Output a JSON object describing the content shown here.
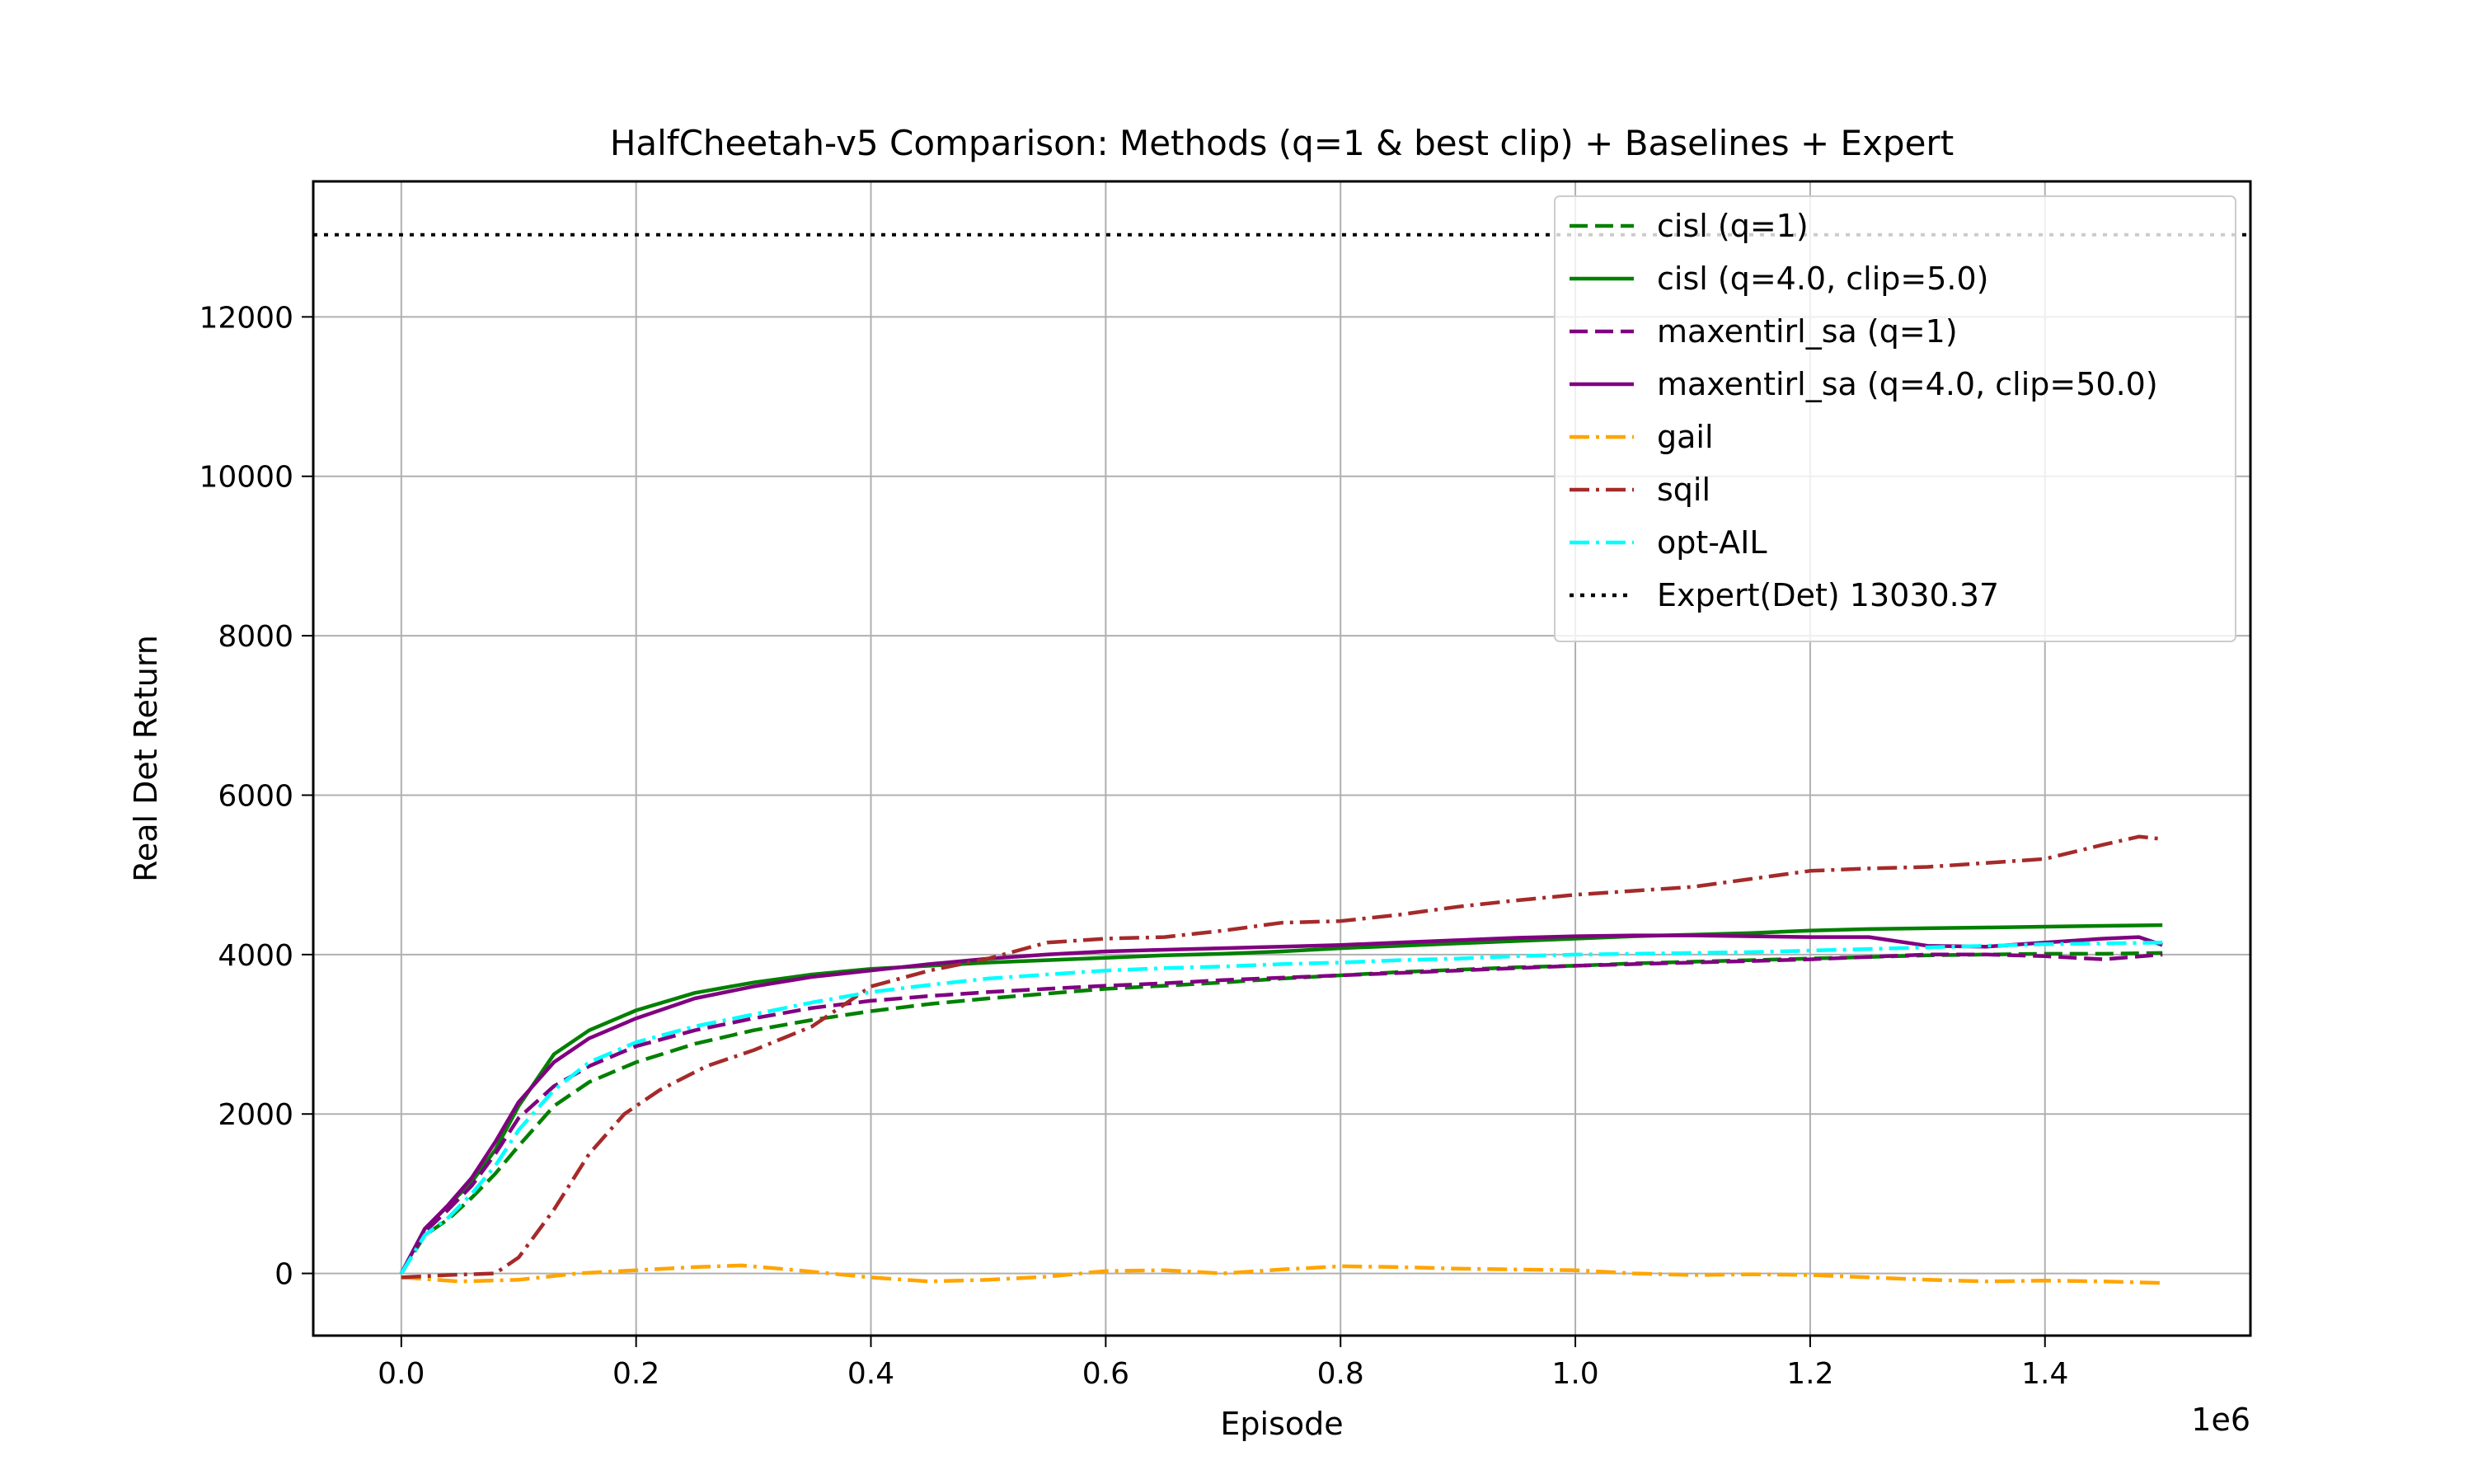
{
  "chart_data": {
    "type": "line",
    "title": "HalfCheetah-v5 Comparison: Methods (q=1 & best clip) + Baselines + Expert",
    "xlabel": "Episode",
    "ylabel": "Real Det Return",
    "x_scale_label": "1e6",
    "x_scale_factor": 1000000,
    "xlim": [
      -75000,
      1575000
    ],
    "ylim": [
      -780,
      13700
    ],
    "x_ticks": [
      0,
      200000,
      400000,
      600000,
      800000,
      1000000,
      1200000,
      1400000
    ],
    "x_tick_labels": [
      "0.0",
      "0.2",
      "0.4",
      "0.6",
      "0.8",
      "1.0",
      "1.2",
      "1.4"
    ],
    "y_ticks": [
      0,
      2000,
      4000,
      6000,
      8000,
      10000,
      12000
    ],
    "y_tick_labels": [
      "0",
      "2000",
      "4000",
      "6000",
      "8000",
      "10000",
      "12000"
    ],
    "grid": true,
    "legend_position": "top-right",
    "series": [
      {
        "name": "cisl (q=1)",
        "color": "#008000",
        "style": "dashed",
        "x": [
          0,
          20000,
          40000,
          60000,
          80000,
          100000,
          130000,
          160000,
          200000,
          250000,
          300000,
          350000,
          400000,
          450000,
          500000,
          550000,
          600000,
          650000,
          700000,
          750000,
          800000,
          850000,
          900000,
          950000,
          1000000,
          1050000,
          1100000,
          1150000,
          1200000,
          1250000,
          1300000,
          1350000,
          1400000,
          1450000,
          1500000
        ],
        "y": [
          0,
          480,
          680,
          950,
          1250,
          1600,
          2100,
          2400,
          2650,
          2880,
          3050,
          3180,
          3290,
          3380,
          3450,
          3510,
          3570,
          3610,
          3650,
          3700,
          3740,
          3780,
          3810,
          3840,
          3860,
          3890,
          3910,
          3930,
          3950,
          3970,
          3990,
          4000,
          4010,
          4010,
          4020
        ]
      },
      {
        "name": "cisl (q=4.0, clip=5.0)",
        "color": "#008000",
        "style": "solid",
        "x": [
          0,
          20000,
          40000,
          60000,
          80000,
          100000,
          130000,
          160000,
          200000,
          250000,
          300000,
          350000,
          400000,
          450000,
          500000,
          550000,
          600000,
          650000,
          700000,
          750000,
          800000,
          850000,
          900000,
          950000,
          1000000,
          1050000,
          1100000,
          1150000,
          1200000,
          1250000,
          1300000,
          1350000,
          1400000,
          1450000,
          1500000
        ],
        "y": [
          0,
          560,
          850,
          1150,
          1550,
          2100,
          2750,
          3050,
          3300,
          3520,
          3650,
          3750,
          3820,
          3860,
          3900,
          3930,
          3960,
          3990,
          4010,
          4040,
          4080,
          4110,
          4140,
          4170,
          4200,
          4230,
          4250,
          4270,
          4300,
          4320,
          4330,
          4340,
          4350,
          4360,
          4370
        ]
      },
      {
        "name": "maxentirl_sa (q=1)",
        "color": "#800080",
        "style": "dashed",
        "x": [
          0,
          20000,
          40000,
          60000,
          80000,
          100000,
          130000,
          160000,
          200000,
          250000,
          300000,
          350000,
          400000,
          450000,
          500000,
          550000,
          600000,
          650000,
          700000,
          750000,
          800000,
          850000,
          900000,
          950000,
          1000000,
          1050000,
          1100000,
          1150000,
          1200000,
          1250000,
          1300000,
          1350000,
          1400000,
          1450000,
          1500000
        ],
        "y": [
          0,
          520,
          800,
          1100,
          1500,
          1950,
          2350,
          2600,
          2850,
          3050,
          3200,
          3330,
          3420,
          3480,
          3530,
          3570,
          3610,
          3640,
          3680,
          3710,
          3740,
          3770,
          3800,
          3830,
          3860,
          3880,
          3900,
          3920,
          3940,
          3970,
          4000,
          4000,
          3980,
          3940,
          4000
        ]
      },
      {
        "name": "maxentirl_sa (q=4.0, clip=50.0)",
        "color": "#800080",
        "style": "solid",
        "x": [
          0,
          20000,
          40000,
          60000,
          80000,
          100000,
          130000,
          160000,
          200000,
          250000,
          300000,
          350000,
          400000,
          450000,
          500000,
          550000,
          600000,
          650000,
          700000,
          750000,
          800000,
          850000,
          900000,
          950000,
          1000000,
          1050000,
          1100000,
          1150000,
          1200000,
          1250000,
          1300000,
          1350000,
          1400000,
          1450000,
          1480000,
          1500000
        ],
        "y": [
          0,
          560,
          860,
          1200,
          1650,
          2150,
          2650,
          2950,
          3200,
          3450,
          3600,
          3720,
          3800,
          3880,
          3950,
          4000,
          4040,
          4060,
          4080,
          4100,
          4120,
          4150,
          4180,
          4210,
          4230,
          4240,
          4240,
          4230,
          4220,
          4220,
          4110,
          4100,
          4150,
          4200,
          4220,
          4120
        ]
      },
      {
        "name": "gail",
        "color": "#ffa500",
        "style": "dashdot",
        "x": [
          0,
          50000,
          100000,
          150000,
          200000,
          250000,
          290000,
          330000,
          400000,
          450000,
          500000,
          550000,
          600000,
          650000,
          700000,
          750000,
          800000,
          850000,
          900000,
          950000,
          1000000,
          1050000,
          1100000,
          1150000,
          1200000,
          1250000,
          1300000,
          1350000,
          1400000,
          1450000,
          1500000
        ],
        "y": [
          -50,
          -100,
          -80,
          0,
          40,
          80,
          100,
          50,
          -50,
          -100,
          -80,
          -40,
          30,
          40,
          0,
          50,
          90,
          80,
          60,
          50,
          40,
          0,
          -20,
          -10,
          -20,
          -50,
          -80,
          -100,
          -90,
          -100,
          -120
        ]
      },
      {
        "name": "sqil",
        "color": "#a52a2a",
        "style": "dashdot",
        "x": [
          0,
          40000,
          80000,
          100000,
          130000,
          160000,
          190000,
          220000,
          260000,
          300000,
          350000,
          400000,
          450000,
          500000,
          550000,
          600000,
          650000,
          700000,
          750000,
          800000,
          850000,
          900000,
          950000,
          1000000,
          1050000,
          1100000,
          1150000,
          1200000,
          1250000,
          1300000,
          1350000,
          1400000,
          1450000,
          1480000,
          1500000
        ],
        "y": [
          -50,
          -20,
          0,
          200,
          800,
          1500,
          2000,
          2300,
          2600,
          2800,
          3100,
          3600,
          3800,
          3950,
          4150,
          4200,
          4220,
          4300,
          4400,
          4420,
          4500,
          4600,
          4680,
          4750,
          4800,
          4850,
          4950,
          5050,
          5080,
          5100,
          5150,
          5200,
          5380,
          5480,
          5450
        ]
      },
      {
        "name": "opt-AIL",
        "color": "#00ffff",
        "style": "dashdot",
        "x": [
          0,
          20000,
          40000,
          60000,
          80000,
          100000,
          130000,
          160000,
          200000,
          250000,
          300000,
          350000,
          400000,
          450000,
          500000,
          550000,
          600000,
          650000,
          700000,
          750000,
          800000,
          850000,
          900000,
          950000,
          1000000,
          1050000,
          1100000,
          1150000,
          1200000,
          1250000,
          1300000,
          1350000,
          1400000,
          1450000,
          1500000
        ],
        "y": [
          0,
          480,
          700,
          1000,
          1350,
          1800,
          2300,
          2650,
          2900,
          3100,
          3250,
          3400,
          3530,
          3620,
          3700,
          3750,
          3800,
          3830,
          3850,
          3880,
          3900,
          3930,
          3950,
          3980,
          4000,
          4010,
          4020,
          4030,
          4050,
          4070,
          4090,
          4110,
          4130,
          4140,
          4150
        ]
      },
      {
        "name": "Expert(Det) 13030.37",
        "color": "#000000",
        "style": "dotted",
        "x": [
          -75000,
          1575000
        ],
        "y": [
          13030.37,
          13030.37
        ]
      }
    ]
  }
}
